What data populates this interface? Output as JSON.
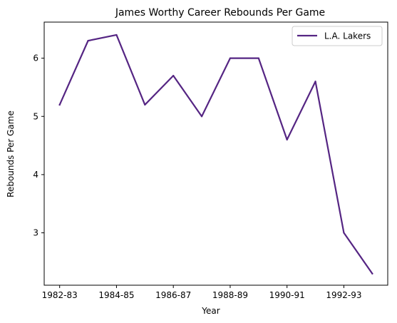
{
  "chart_data": {
    "type": "line",
    "title": "James Worthy Career Rebounds Per Game",
    "xlabel": "Year",
    "ylabel": "Rebounds Per Game",
    "x": [
      "1982-83",
      "1983-84",
      "1984-85",
      "1985-86",
      "1986-87",
      "1987-88",
      "1988-89",
      "1989-90",
      "1990-91",
      "1991-92",
      "1992-93",
      "1993-94"
    ],
    "x_tick_labels": [
      "1982-83",
      "1984-85",
      "1986-87",
      "1988-89",
      "1990-91",
      "1992-93"
    ],
    "ylim": [
      2.1,
      6.62
    ],
    "y_ticks": [
      3,
      4,
      5,
      6
    ],
    "grid": false,
    "legend_position": "top-right",
    "series": [
      {
        "name": "L.A. Lakers",
        "color": "#552583",
        "values": [
          5.2,
          6.3,
          6.4,
          5.2,
          5.7,
          5.0,
          6.0,
          6.0,
          4.6,
          5.6,
          3.0,
          2.3
        ]
      }
    ]
  }
}
